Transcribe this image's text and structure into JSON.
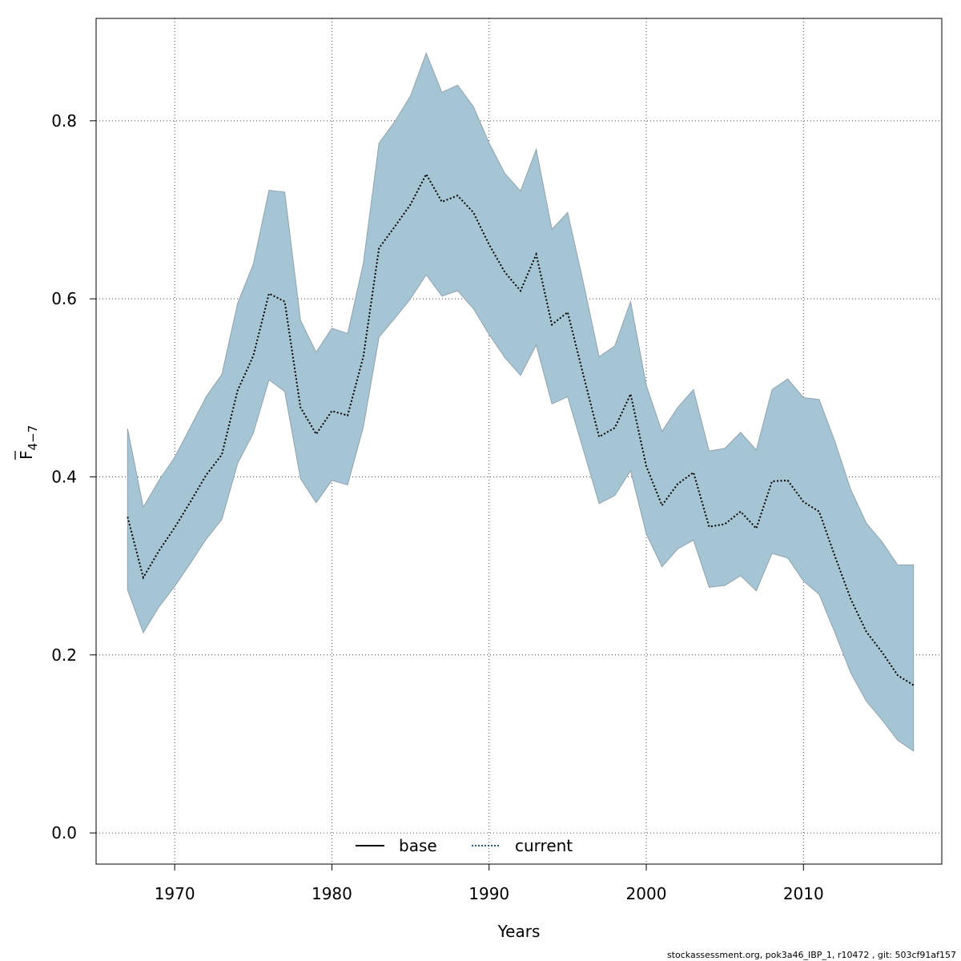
{
  "chart_data": {
    "type": "line",
    "xlabel": "Years",
    "ylabel_main": "F",
    "ylabel_sub": "4−7",
    "xlim": [
      1965,
      2018.8
    ],
    "ylim": [
      -0.035,
      0.915
    ],
    "xticks": [
      1970,
      1980,
      1990,
      2000,
      2010
    ],
    "yticks": [
      0.0,
      0.2,
      0.4,
      0.6,
      0.8
    ],
    "ytick_labels": [
      "0.0",
      "0.2",
      "0.4",
      "0.6",
      "0.8"
    ],
    "grid": true,
    "band_color": "#a5c4d4",
    "band_edge_color": "#8fa3ae",
    "legend_position": "bottom-center",
    "years": [
      1967,
      1968,
      1969,
      1970,
      1971,
      1972,
      1973,
      1974,
      1975,
      1976,
      1977,
      1978,
      1979,
      1980,
      1981,
      1982,
      1983,
      1984,
      1985,
      1986,
      1987,
      1988,
      1989,
      1990,
      1991,
      1992,
      1993,
      1994,
      1995,
      1996,
      1997,
      1998,
      1999,
      2000,
      2001,
      2002,
      2003,
      2004,
      2005,
      2006,
      2007,
      2008,
      2009,
      2010,
      2011,
      2012,
      2013,
      2014,
      2015,
      2016,
      2017
    ],
    "series": [
      {
        "name": "current",
        "style": "dotted",
        "color": "#1f5f8b",
        "values": [
          0.355,
          0.287,
          0.317,
          0.343,
          0.372,
          0.402,
          0.425,
          0.497,
          0.536,
          0.606,
          0.597,
          0.478,
          0.448,
          0.474,
          0.469,
          0.535,
          0.657,
          0.681,
          0.706,
          0.74,
          0.709,
          0.716,
          0.697,
          0.661,
          0.63,
          0.609,
          0.65,
          0.571,
          0.585,
          0.514,
          0.445,
          0.455,
          0.493,
          0.412,
          0.368,
          0.392,
          0.405,
          0.344,
          0.347,
          0.361,
          0.342,
          0.395,
          0.396,
          0.372,
          0.361,
          0.311,
          0.263,
          0.226,
          0.203,
          0.177,
          0.166
        ]
      },
      {
        "name": "base",
        "style": "solid",
        "color": "#000000",
        "values": []
      }
    ],
    "upper": [
      0.454,
      0.366,
      0.396,
      0.422,
      0.456,
      0.49,
      0.515,
      0.595,
      0.639,
      0.722,
      0.72,
      0.576,
      0.54,
      0.567,
      0.561,
      0.64,
      0.775,
      0.799,
      0.828,
      0.876,
      0.832,
      0.84,
      0.816,
      0.775,
      0.741,
      0.721,
      0.768,
      0.678,
      0.697,
      0.618,
      0.535,
      0.547,
      0.597,
      0.503,
      0.451,
      0.478,
      0.498,
      0.429,
      0.432,
      0.45,
      0.43,
      0.498,
      0.51,
      0.489,
      0.487,
      0.44,
      0.386,
      0.348,
      0.327,
      0.301,
      0.301
    ],
    "lower": [
      0.273,
      0.225,
      0.254,
      0.277,
      0.303,
      0.33,
      0.352,
      0.415,
      0.449,
      0.509,
      0.496,
      0.398,
      0.371,
      0.396,
      0.391,
      0.456,
      0.557,
      0.578,
      0.6,
      0.627,
      0.603,
      0.609,
      0.589,
      0.56,
      0.534,
      0.514,
      0.548,
      0.482,
      0.49,
      0.43,
      0.37,
      0.379,
      0.407,
      0.336,
      0.299,
      0.319,
      0.329,
      0.276,
      0.278,
      0.289,
      0.272,
      0.314,
      0.309,
      0.283,
      0.268,
      0.225,
      0.18,
      0.148,
      0.127,
      0.104,
      0.092
    ]
  },
  "footer": "stockassessment.org, pok3a46_IBP_1, r10472 , git: 503cf91af157"
}
